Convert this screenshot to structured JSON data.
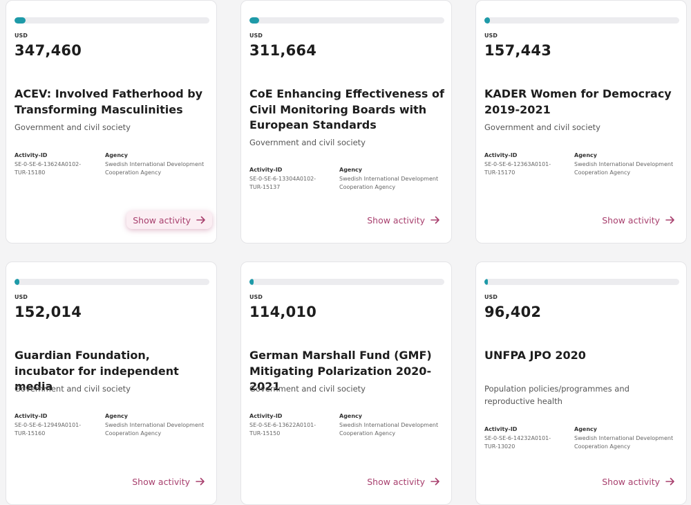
{
  "cards": [
    {
      "currency": "USD",
      "amount": "347,460",
      "progress": 0.055,
      "title": "ACEV: Involved Fatherhood by Transforming Masculinities",
      "sector": "Government and civil society",
      "activity_label": "Activity-ID",
      "activity_id": "SE-0-SE-6-13624A0102-TUR-15180",
      "agency_label": "Agency",
      "agency": "Swedish International Development Cooperation Agency",
      "link": "Show activity"
    },
    {
      "currency": "USD",
      "amount": "311,664",
      "progress": 0.05,
      "title": "CoE Enhancing Effectiveness of Civil Monitoring Boards with European Standards",
      "sector": "Government and civil society",
      "activity_label": "Activity-ID",
      "activity_id": "SE-0-SE-6-13304A0102-TUR-15137",
      "agency_label": "Agency",
      "agency": "Swedish International Development Cooperation Agency",
      "link": "Show activity"
    },
    {
      "currency": "USD",
      "amount": "157,443",
      "progress": 0.028,
      "title": "KADER Women for Democracy 2019-2021",
      "sector": "Government and civil society",
      "activity_label": "Activity-ID",
      "activity_id": "SE-0-SE-6-12363A0101-TUR-15170",
      "agency_label": "Agency",
      "agency": "Swedish International Development Cooperation Agency",
      "link": "Show activity"
    },
    {
      "currency": "USD",
      "amount": "152,014",
      "progress": 0.025,
      "title": "Guardian Foundation, incubator for independent media",
      "sector": "Government and civil society",
      "activity_label": "Activity-ID",
      "activity_id": "SE-0-SE-6-12949A0101-TUR-15160",
      "agency_label": "Agency",
      "agency": "Swedish International Development Cooperation Agency",
      "link": "Show activity"
    },
    {
      "currency": "USD",
      "amount": "114,010",
      "progress": 0.02,
      "title": "German Marshall Fund (GMF) Mitigating Polarization 2020-2021",
      "sector": "Government and civil society",
      "activity_label": "Activity-ID",
      "activity_id": "SE-0-SE-6-13622A0101-TUR-15150",
      "agency_label": "Agency",
      "agency": "Swedish International Development Cooperation Agency",
      "link": "Show activity"
    },
    {
      "currency": "USD",
      "amount": "96,402",
      "progress": 0.016,
      "title": "UNFPA JPO 2020",
      "sector": "Population policies/programmes and reproductive health",
      "activity_label": "Activity-ID",
      "activity_id": "SE-0-SE-6-14232A0101-TUR-13020",
      "agency_label": "Agency",
      "agency": "Swedish International Development Cooperation Agency",
      "link": "Show activity"
    }
  ],
  "colors": {
    "progress_fill": "#1e9aa8",
    "link": "#a8406e",
    "highlight_bg": "#fbeef3"
  }
}
